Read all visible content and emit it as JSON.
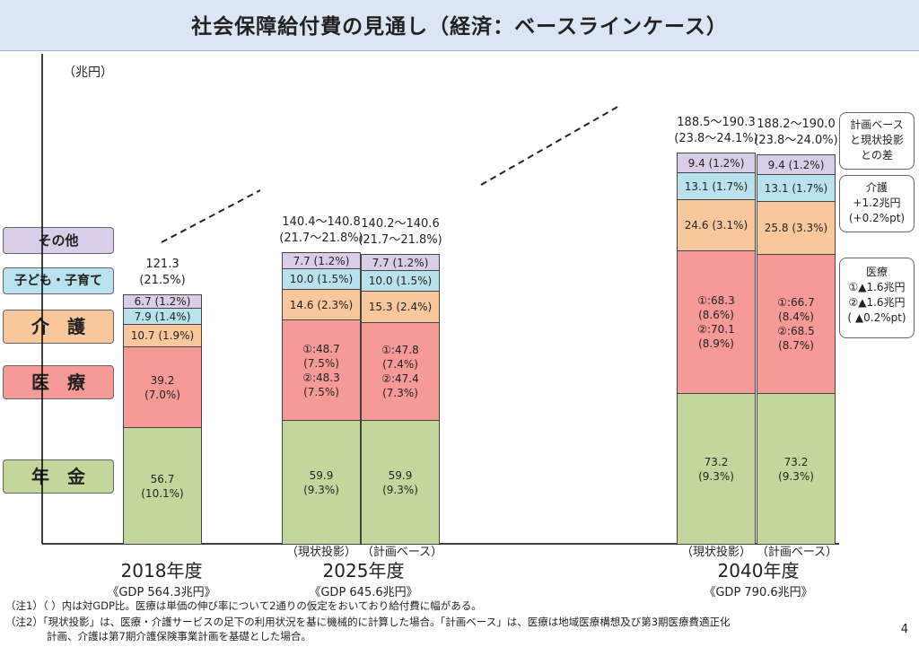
{
  "title": "社会保障給付費の見通し（経済：ベースラインケース）",
  "unit_label": "（兆円）",
  "legend": [
    {
      "key": "other",
      "label": "その他",
      "color": "#d9cde8"
    },
    {
      "key": "child",
      "label": "子ども・子育て",
      "color": "#b9e2ee"
    },
    {
      "key": "care",
      "label": "介　護",
      "color": "#f8c89c"
    },
    {
      "key": "medical",
      "label": "医　療",
      "color": "#f69a98"
    },
    {
      "key": "pension",
      "label": "年　金",
      "color": "#c3d79c"
    }
  ],
  "years": [
    {
      "year": "2018年度",
      "gdp": "《GDP 564.3兆円》"
    },
    {
      "year": "2025年度",
      "gdp": "《GDP 645.6兆円》"
    },
    {
      "year": "2040年度",
      "gdp": "《GDP 790.6兆円》"
    }
  ],
  "sub_labels": {
    "genjo": "（現状投影）",
    "keikaku": "（計画ベース）"
  },
  "chart_data": {
    "type": "bar",
    "stacked": true,
    "ylabel": "（兆円）",
    "categories": [
      "2018年度",
      "2025年度 現状投影",
      "2025年度 計画ベース",
      "2040年度 現状投影",
      "2040年度 計画ベース"
    ],
    "totals": [
      {
        "value": "121.3",
        "pct": "(21.5%)"
      },
      {
        "value": "140.4～140.8",
        "pct": "(21.7～21.8%)"
      },
      {
        "value": "140.2～140.6",
        "pct": "(21.7～21.8%)"
      },
      {
        "value": "188.5～190.3",
        "pct": "(23.8～24.1%)"
      },
      {
        "value": "188.2～190.0",
        "pct": "(23.8～24.0%)"
      }
    ],
    "series": [
      {
        "name": "年金",
        "values": [
          56.7,
          59.9,
          59.9,
          73.2,
          73.2
        ],
        "labels": [
          [
            "56.7",
            "(10.1%)"
          ],
          [
            "59.9",
            "(9.3%)"
          ],
          [
            "59.9",
            "(9.3%)"
          ],
          [
            "73.2",
            "(9.3%)"
          ],
          [
            "73.2",
            "(9.3%)"
          ]
        ]
      },
      {
        "name": "医療",
        "values": [
          39.2,
          48.5,
          47.6,
          69.2,
          67.6
        ],
        "labels": [
          [
            "39.2",
            "(7.0%)"
          ],
          [
            "①:48.7",
            "(7.5%)",
            "②:48.3",
            "(7.5%)"
          ],
          [
            "①:47.8",
            "(7.4%)",
            "②:47.4",
            "(7.3%)"
          ],
          [
            "①:68.3",
            "(8.6%)",
            "②:70.1",
            "(8.9%)"
          ],
          [
            "①:66.7",
            "(8.4%)",
            "②:68.5",
            "(8.7%)"
          ]
        ]
      },
      {
        "name": "介護",
        "values": [
          10.7,
          14.6,
          15.3,
          24.6,
          25.8
        ],
        "labels": [
          [
            "10.7 (1.9%)"
          ],
          [
            "14.6 (2.3%)"
          ],
          [
            "15.3 (2.4%)"
          ],
          [
            "24.6 (3.1%)"
          ],
          [
            "25.8 (3.3%)"
          ]
        ]
      },
      {
        "name": "子ども・子育て",
        "values": [
          7.9,
          10.0,
          10.0,
          13.1,
          13.1
        ],
        "labels": [
          [
            "7.9 (1.4%)"
          ],
          [
            "10.0 (1.5%)"
          ],
          [
            "10.0 (1.5%)"
          ],
          [
            "13.1 (1.7%)"
          ],
          [
            "13.1 (1.7%)"
          ]
        ]
      },
      {
        "name": "その他",
        "values": [
          6.7,
          7.7,
          7.7,
          9.4,
          9.4
        ],
        "labels": [
          [
            "6.7 (1.2%)"
          ],
          [
            "7.7 (1.2%)"
          ],
          [
            "7.7 (1.2%)"
          ],
          [
            "9.4 (1.2%)"
          ],
          [
            "9.4 (1.2%)"
          ]
        ]
      }
    ]
  },
  "notes_right": [
    {
      "lines": [
        "計画ベース",
        "と現状投影",
        "との差"
      ]
    },
    {
      "lines": [
        "介護",
        "+1.2兆円",
        "(+0.2%pt)"
      ]
    },
    {
      "lines": [
        "医療",
        "①▲1.6兆円",
        "②▲1.6兆円",
        "( ▲0.2%pt)"
      ]
    }
  ],
  "footnotes": [
    "（注1）（ ）内は対GDP比。医療は単価の伸び率について2通りの仮定をおいており給付費に幅がある。",
    "（注2）「現状投影」は、医療・介護サービスの足下の利用状況を基に機械的に計算した場合。「計画ベース」は、医療は地域医療構想及び第3期医療費適正化",
    "　　　　計画、介護は第7期介護保険事業計画を基礎とした場合。"
  ],
  "page_number": "4"
}
